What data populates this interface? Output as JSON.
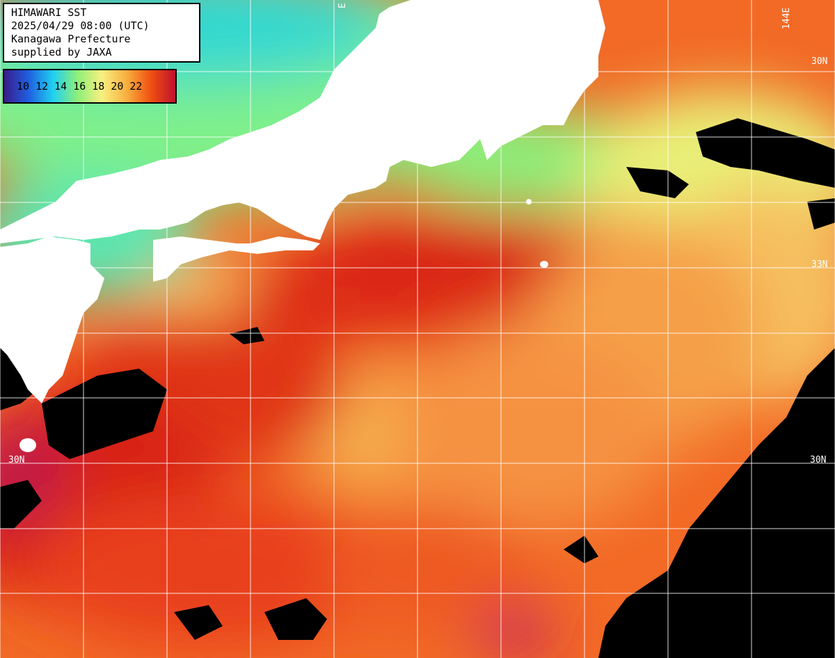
{
  "map_title": {
    "product": "HIMAWARI SST",
    "timestamp": "2025/04/29 08:00 (UTC)",
    "region": "Kanagawa Prefecture",
    "credit": "supplied by JAXA"
  },
  "legend": {
    "ticks": [
      "10",
      "12",
      "14",
      "16",
      "18",
      "20",
      "22"
    ],
    "gradient_colors": [
      "#3a1b8c",
      "#1f5fe0",
      "#1fd0f0",
      "#8ef078",
      "#f8f080",
      "#f8b040",
      "#f05010",
      "#c01030"
    ]
  },
  "grid_labels": {
    "lat_33_right": "33N",
    "lat_30_left": "30N",
    "lat_30_right": "30N",
    "lat_30_right_top": "30N",
    "lon_144": "144E",
    "lon_partial_top": "E"
  },
  "colors": {
    "land": "#ffffff",
    "cloud": "#000000",
    "warm_core": "#e0301c",
    "ocean_orange": "#f47c30",
    "coastal_green": "#a0f078",
    "grid_line": "#ffffff"
  }
}
